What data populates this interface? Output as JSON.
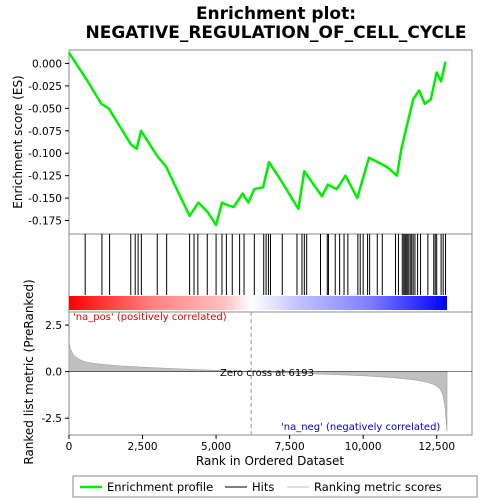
{
  "chart_data": {
    "type": "line",
    "title_line1": "Enrichment plot:",
    "title_line2": "NEGATIVE_REGULATION_OF_CELL_CYCLE",
    "es_panel": {
      "ylabel": "Enrichment score (ES)",
      "ylim": [
        -0.19,
        0.015
      ],
      "yticks": [
        0.0,
        -0.025,
        -0.05,
        -0.075,
        -0.1,
        -0.125,
        -0.15,
        -0.175
      ],
      "ytick_labels": [
        "0.000",
        "-0.025",
        "-0.050",
        "-0.075",
        "-0.100",
        "-0.125",
        "-0.150",
        "-0.175"
      ],
      "series_name": "Enrichment profile",
      "color": "#00ee00",
      "x": [
        0,
        600,
        1100,
        1350,
        2100,
        2300,
        2450,
        3000,
        3300,
        4100,
        4400,
        4700,
        5000,
        5200,
        5400,
        5600,
        5900,
        6100,
        6300,
        6600,
        6800,
        7200,
        7800,
        8000,
        8600,
        8800,
        9100,
        9400,
        9800,
        10200,
        10500,
        10800,
        11150,
        11300,
        11700,
        11900,
        12100,
        12300,
        12500,
        12650,
        12800
      ],
      "y": [
        0.012,
        -0.018,
        -0.045,
        -0.05,
        -0.09,
        -0.095,
        -0.075,
        -0.103,
        -0.115,
        -0.17,
        -0.155,
        -0.165,
        -0.18,
        -0.155,
        -0.158,
        -0.16,
        -0.145,
        -0.155,
        -0.14,
        -0.138,
        -0.11,
        -0.13,
        -0.162,
        -0.12,
        -0.148,
        -0.135,
        -0.14,
        -0.125,
        -0.15,
        -0.105,
        -0.11,
        -0.115,
        -0.125,
        -0.095,
        -0.04,
        -0.03,
        -0.045,
        -0.04,
        -0.01,
        -0.02,
        0.002
      ]
    },
    "hits_panel": {
      "hit_positions": [
        550,
        1120,
        1380,
        2100,
        2250,
        2350,
        2460,
        3000,
        3320,
        4100,
        4250,
        4380,
        4700,
        5000,
        5200,
        5350,
        5550,
        5800,
        5950,
        6300,
        6620,
        6700,
        6780,
        6850,
        7250,
        7750,
        7920,
        8000,
        8080,
        8550,
        8780,
        8820,
        9050,
        9200,
        9350,
        9480,
        9820,
        9900,
        10000,
        10150,
        10220,
        10480,
        10650,
        11100,
        11200,
        11330,
        11380,
        11420,
        11460,
        11500,
        11550,
        11600,
        11650,
        11700,
        11760,
        11850,
        11950,
        12200,
        12400,
        12450,
        12500,
        12650,
        12720,
        12800
      ]
    },
    "bar": {
      "colors": [
        "#ff0000",
        "#ff8080",
        "#ffc0c0",
        "#ffffff",
        "#c0c0ff",
        "#8080ff",
        "#0000ff"
      ]
    },
    "rank_panel": {
      "ylabel": "Ranked list metric (PreRanked)",
      "ylim": [
        -3.4,
        3.2
      ],
      "yticks": [
        2.5,
        0.0,
        -2.5
      ],
      "ytick_labels": [
        "2.5",
        "0.0",
        "-2.5"
      ],
      "xlabel": "Rank in Ordered Dataset",
      "xlim": [
        0,
        13700
      ],
      "xticks": [
        0,
        2500,
        5000,
        7500,
        10000,
        12500
      ],
      "xtick_labels": [
        "0",
        "2,500",
        "5,000",
        "7,500",
        "10,000",
        "12,500"
      ],
      "zero_cross": 6193,
      "zero_cross_label": "Zero cross at 6193",
      "pos_label": "'na_pos' (positively correlated)",
      "neg_label": "'na_neg' (negatively correlated)",
      "pos_color": "#dd0000",
      "neg_color": "#0000cc",
      "fill_color": "#c0c0c0",
      "metric_x": [
        0,
        50,
        150,
        300,
        500,
        800,
        1200,
        1800,
        2500,
        3500,
        4500,
        5500,
        6193,
        7000,
        8000,
        9000,
        10000,
        10800,
        11400,
        11900,
        12200,
        12450,
        12600,
        12700,
        12780,
        12850
      ],
      "metric_y": [
        1.6,
        1.2,
        0.9,
        0.7,
        0.55,
        0.45,
        0.38,
        0.3,
        0.24,
        0.17,
        0.1,
        0.04,
        0.0,
        -0.05,
        -0.1,
        -0.16,
        -0.22,
        -0.3,
        -0.38,
        -0.48,
        -0.58,
        -0.72,
        -0.9,
        -1.2,
        -1.8,
        -3.2
      ]
    },
    "legend": {
      "items": [
        {
          "label": "Enrichment profile",
          "color": "#00ee00"
        },
        {
          "label": "Hits",
          "color": "#000000"
        },
        {
          "label": "Ranking metric scores",
          "color": "#c0c0c0"
        }
      ]
    },
    "n_genes": 12850
  }
}
